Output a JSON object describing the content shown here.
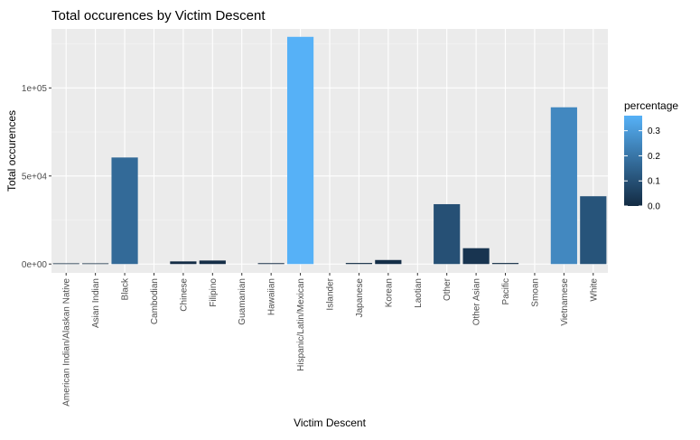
{
  "chart_data": {
    "type": "bar",
    "title": "Total occurences by Victim Descent",
    "xlabel": "Victim Descent",
    "ylabel": "Total occurences",
    "ylim": [
      -5000,
      133500
    ],
    "yticks": [
      0,
      50000,
      100000
    ],
    "ytick_labels": [
      "0e+00",
      "5e+04",
      "1e+05"
    ],
    "grid": true,
    "categories": [
      "American Indian/Alaskan Native",
      "Asian Indian",
      "Black",
      "Cambodian",
      "Chinese",
      "Filipino",
      "Guamanian",
      "Hawaiian",
      "Hispanic/Latin/Mexican",
      "Islander",
      "Japanese",
      "Korean",
      "Laotian",
      "Other",
      "Other Asian",
      "Pacific",
      "Smoan",
      "Vietnamese",
      "White"
    ],
    "values": [
      400,
      400,
      60500,
      0,
      1500,
      2000,
      0,
      500,
      129000,
      0,
      600,
      2300,
      0,
      34000,
      9000,
      600,
      0,
      89000,
      38500
    ],
    "fill_percentages": [
      0.001,
      0.001,
      0.17,
      0,
      0.004,
      0.006,
      0,
      0.001,
      0.36,
      0,
      0.002,
      0.007,
      0,
      0.1,
      0.025,
      0.002,
      0,
      0.25,
      0.11
    ],
    "legend": {
      "title": "percentage",
      "position": "right",
      "ticks": [
        0.0,
        0.1,
        0.2,
        0.3
      ],
      "tick_labels": [
        "0.0",
        "0.1",
        "0.2",
        "0.3"
      ],
      "range": [
        0,
        0.36
      ],
      "low_color": "#132B43",
      "high_color": "#56B1F7"
    }
  }
}
